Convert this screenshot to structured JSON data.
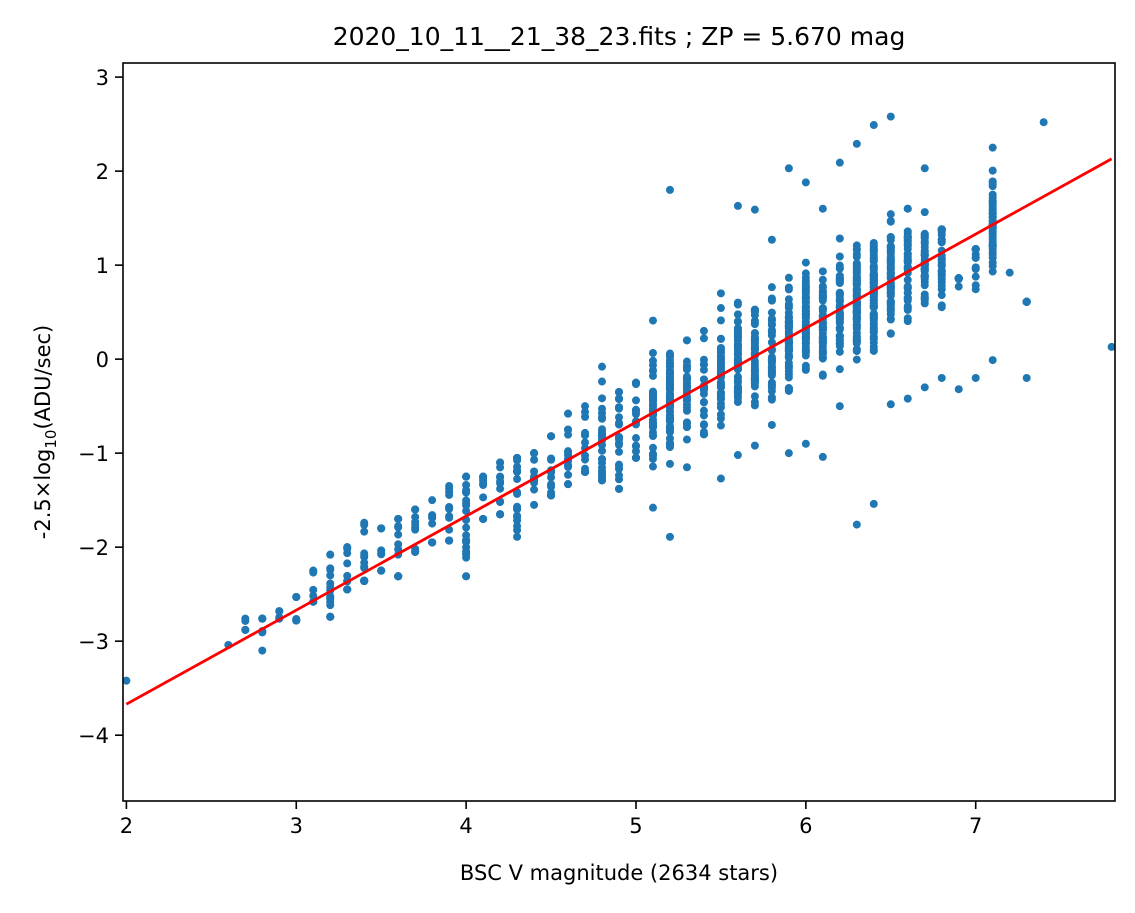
{
  "chart_data": {
    "type": "scatter",
    "title": "2020_10_11__21_38_23.fits ; ZP = 5.670 mag",
    "xlabel": "BSC V magnitude (2634 stars)",
    "ylabel": {
      "prefix": "-2.5×log",
      "sub": "10",
      "suffix": "(ADU/sec)"
    },
    "xlim": [
      1.98,
      7.82
    ],
    "ylim": [
      -4.7,
      3.15
    ],
    "xticks": [
      2,
      3,
      4,
      5,
      6,
      7
    ],
    "yticks": [
      3,
      2,
      1,
      0,
      -1,
      -2,
      -3,
      -4
    ],
    "ytick_labels": [
      "3",
      "2",
      "1",
      "0",
      "−1",
      "−2",
      "−3",
      "−4"
    ],
    "grid": false,
    "colors": {
      "points": "#1f77b4",
      "fit_line": "#ff0000",
      "axes": "#000000"
    },
    "fit_line": {
      "x": [
        2.0,
        7.8
      ],
      "y": [
        -3.67,
        2.13
      ]
    },
    "points_summary": {
      "columns": [
        [
          2.0,
          -3.42,
          -3.42
        ],
        [
          2.6,
          -3.04,
          -3.04
        ],
        [
          2.7,
          -2.88,
          -2.76
        ],
        [
          2.8,
          -3.1,
          -2.76
        ],
        [
          2.9,
          -2.76,
          -2.68
        ],
        [
          3.0,
          -2.78,
          -2.53
        ],
        [
          3.1,
          -2.58,
          -2.25
        ],
        [
          3.2,
          -2.74,
          -2.08
        ],
        [
          3.3,
          -2.45,
          -2.0
        ],
        [
          3.4,
          -2.36,
          -1.74
        ],
        [
          3.5,
          -2.25,
          -1.8
        ],
        [
          3.6,
          -2.31,
          -1.7
        ],
        [
          3.7,
          -2.05,
          -1.6
        ],
        [
          3.8,
          -1.95,
          -1.5
        ],
        [
          3.9,
          -1.93,
          -1.35
        ],
        [
          4.0,
          -2.31,
          -1.25
        ],
        [
          4.1,
          -1.7,
          -1.25
        ],
        [
          4.2,
          -1.65,
          -1.1
        ],
        [
          4.3,
          -1.89,
          -1.05
        ],
        [
          4.4,
          -1.55,
          -1.0
        ],
        [
          4.5,
          -1.45,
          -0.82
        ],
        [
          4.6,
          -1.33,
          -0.58
        ],
        [
          4.7,
          -1.2,
          -0.5
        ],
        [
          4.8,
          -1.29,
          -0.08
        ],
        [
          4.9,
          -1.38,
          -0.35
        ],
        [
          5.0,
          -1.05,
          -0.25
        ],
        [
          5.1,
          -1.58,
          0.41
        ],
        [
          5.2,
          -1.89,
          1.8
        ],
        [
          5.3,
          -1.15,
          0.2
        ],
        [
          5.4,
          -0.8,
          0.3
        ],
        [
          5.5,
          -1.27,
          0.7
        ],
        [
          5.6,
          -1.02,
          1.63
        ],
        [
          5.7,
          -0.92,
          1.59
        ],
        [
          5.8,
          -0.7,
          1.27
        ],
        [
          5.9,
          -1.0,
          2.03
        ],
        [
          6.0,
          -0.9,
          1.88
        ],
        [
          6.1,
          -1.04,
          1.6
        ],
        [
          6.2,
          -0.5,
          2.09
        ],
        [
          6.3,
          -1.76,
          2.29
        ],
        [
          6.4,
          -1.54,
          2.49
        ],
        [
          6.5,
          -0.48,
          2.58
        ],
        [
          6.6,
          -0.42,
          1.6
        ],
        [
          6.7,
          -0.3,
          2.03
        ],
        [
          6.8,
          -0.2,
          1.38
        ],
        [
          6.9,
          -0.32,
          0.86
        ],
        [
          7.0,
          -0.2,
          1.17
        ],
        [
          7.1,
          -0.01,
          2.25
        ],
        [
          7.2,
          0.92,
          0.92
        ],
        [
          7.3,
          -0.2,
          0.61
        ],
        [
          7.4,
          2.52,
          2.52
        ],
        [
          7.8,
          0.13,
          0.13
        ]
      ]
    }
  }
}
